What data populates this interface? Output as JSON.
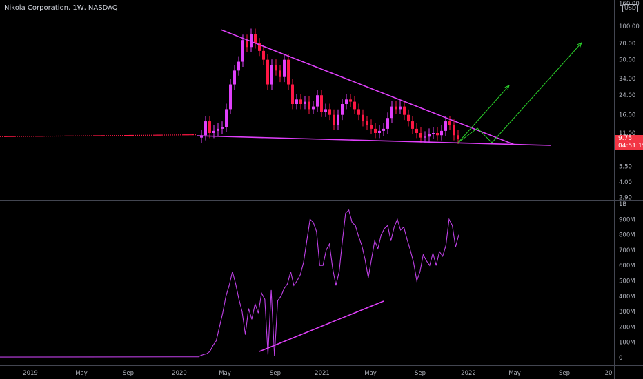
{
  "header": {
    "title": "Nikola Corporation, 1W, NASDAQ",
    "currency": "USD"
  },
  "price_tag": {
    "price": "9.75",
    "countdown": "04:51:19"
  },
  "colors": {
    "background": "#000000",
    "up_candle": "#e040fb",
    "down_candle": "#ff1744",
    "pattern_lines": "#e040fb",
    "volume_line": "#c040e8",
    "arrows": "#2bd12b",
    "price_line": "#f23645",
    "axis_text": "#b2b5be",
    "grid_divider": "#434651"
  },
  "chart_data": [
    {
      "type": "candlestick",
      "pane": "price",
      "y_scale": "log",
      "ylim": [
        2.6,
        165
      ],
      "y_ticks": [
        "160.00",
        "100.00",
        "70.00",
        "50.00",
        "34.00",
        "24.00",
        "16.00",
        "11.00",
        "5.50",
        "4.00",
        "2.90"
      ],
      "y_tick_values": [
        160,
        100,
        70,
        50,
        34,
        24,
        16,
        11,
        5.5,
        4,
        2.9
      ],
      "last_price": 9.75,
      "candles_close": [
        10.5,
        14,
        11,
        11.5,
        12,
        12.5,
        18,
        30,
        40,
        48,
        75,
        65,
        85,
        70,
        60,
        50,
        30,
        45,
        40,
        35,
        50,
        30,
        20,
        22,
        20,
        21,
        18,
        19,
        24,
        17,
        18,
        16,
        13,
        16,
        20,
        22,
        21,
        18,
        16,
        14,
        13,
        12,
        11,
        11.5,
        12,
        15,
        19,
        18,
        19,
        16,
        14,
        12,
        11,
        10,
        10.2,
        10.8,
        11,
        10.5,
        11.5,
        14,
        13,
        10.5,
        9.75
      ],
      "annotations": [
        {
          "kind": "trendline",
          "label": "upper",
          "from": [
            "2020-04",
            95
          ],
          "to": [
            "2022-04",
            9.8
          ]
        },
        {
          "kind": "trendline",
          "label": "lower",
          "from": [
            "2020-01",
            10.6
          ],
          "to": [
            "2022-07",
            9.4
          ]
        },
        {
          "kind": "arrow",
          "from": [
            "2021-11",
            9.6
          ],
          "to": [
            "2022-02",
            28
          ]
        },
        {
          "kind": "arrow",
          "from": [
            "2022-03",
            9.6
          ],
          "to": [
            "2022-05",
            70
          ]
        }
      ]
    },
    {
      "type": "line",
      "pane": "volume",
      "ylim": [
        0,
        1000
      ],
      "y_ticks": [
        "1B",
        "900M",
        "800M",
        "700M",
        "600M",
        "500M",
        "400M",
        "300M",
        "200M",
        "100M",
        "0"
      ],
      "y_tick_values": [
        1000,
        900,
        800,
        700,
        600,
        500,
        400,
        300,
        200,
        100,
        0
      ],
      "values": [
        12,
        20,
        25,
        40,
        80,
        110,
        200,
        290,
        400,
        470,
        560,
        480,
        380,
        300,
        150,
        320,
        250,
        350,
        290,
        420,
        380,
        20,
        440,
        10,
        370,
        400,
        450,
        480,
        560,
        470,
        500,
        540,
        620,
        760,
        900,
        880,
        820,
        600,
        600,
        700,
        740,
        580,
        470,
        560,
        760,
        940,
        960,
        880,
        860,
        790,
        730,
        640,
        520,
        640,
        760,
        710,
        800,
        840,
        860,
        760,
        850,
        900,
        830,
        850,
        770,
        700,
        620,
        500,
        560,
        670,
        630,
        600,
        680,
        600,
        690,
        660,
        730,
        900,
        860,
        720,
        800
      ]
    }
  ],
  "x_axis": {
    "labels": [
      "2019",
      "May",
      "Sep",
      "2020",
      "May",
      "Sep",
      "2021",
      "May",
      "Sep",
      "2022",
      "May",
      "Sep",
      "20"
    ]
  }
}
